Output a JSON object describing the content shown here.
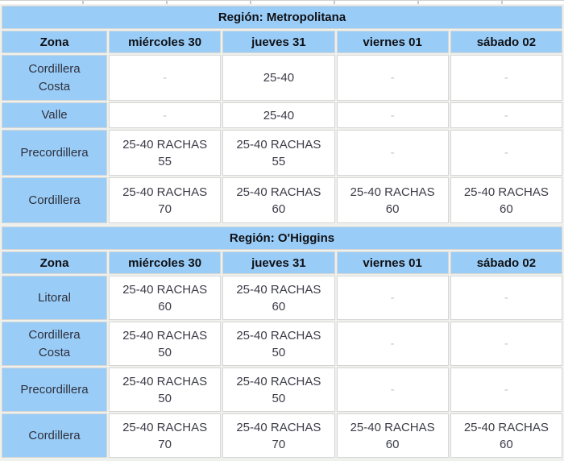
{
  "colors": {
    "cell_blue": "#99cdf8",
    "header_text": "#101014",
    "body_text": "#3c3c49",
    "empty_dash": "#c3c3c3",
    "cell_border": "#d6d6d6",
    "page_background": "#eff1ec"
  },
  "tables": [
    {
      "region_label": "Región: Metropolitana",
      "columns": [
        "Zona",
        "miércoles 30",
        "jueves 31",
        "viernes 01",
        "sábado 02"
      ],
      "rows": [
        {
          "zone": "Cordillera Costa",
          "values": [
            "-",
            "25-40",
            "-",
            "-"
          ]
        },
        {
          "zone": "Valle",
          "values": [
            "-",
            "25-40",
            "-",
            "-"
          ]
        },
        {
          "zone": "Precordillera",
          "values": [
            "25-40 RACHAS\n55",
            "25-40 RACHAS\n55",
            "-",
            "-"
          ]
        },
        {
          "zone": "Cordillera",
          "values": [
            "25-40 RACHAS\n70",
            "25-40 RACHAS\n60",
            "25-40 RACHAS\n60",
            "25-40 RACHAS\n60"
          ]
        }
      ]
    },
    {
      "region_label": "Región: O'Higgins",
      "columns": [
        "Zona",
        "miércoles 30",
        "jueves 31",
        "viernes 01",
        "sábado 02"
      ],
      "rows": [
        {
          "zone": "Litoral",
          "values": [
            "25-40 RACHAS\n60",
            "25-40 RACHAS\n60",
            "-",
            "-"
          ]
        },
        {
          "zone": "Cordillera Costa",
          "values": [
            "25-40 RACHAS\n50",
            "25-40 RACHAS\n50",
            "-",
            "-"
          ]
        },
        {
          "zone": "Precordillera",
          "values": [
            "25-40 RACHAS\n50",
            "25-40 RACHAS\n50",
            "-",
            "-"
          ]
        },
        {
          "zone": "Cordillera",
          "values": [
            "25-40 RACHAS\n70",
            "25-40 RACHAS\n70",
            "25-40 RACHAS\n60",
            "25-40 RACHAS\n60"
          ]
        }
      ]
    }
  ]
}
